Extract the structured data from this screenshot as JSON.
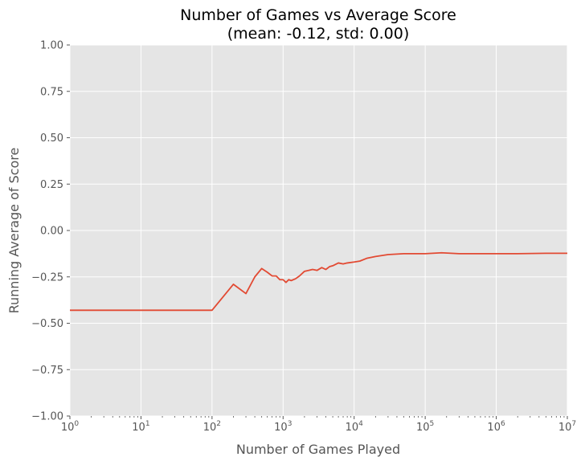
{
  "chart_data": {
    "type": "line",
    "title": "Number of Games vs Average Score",
    "subtitle": "(mean: -0.12, std: 0.00)",
    "xlabel": "Number of Games Played",
    "ylabel": "Running Average of Score",
    "xscale": "log",
    "xlim": [
      1,
      10000000
    ],
    "ylim": [
      -1.0,
      1.0
    ],
    "grid": true,
    "legend": "none",
    "x_tick_labels": [
      {
        "value": 1,
        "base": "10",
        "exp": "0"
      },
      {
        "value": 10,
        "base": "10",
        "exp": "1"
      },
      {
        "value": 100,
        "base": "10",
        "exp": "2"
      },
      {
        "value": 1000,
        "base": "10",
        "exp": "3"
      },
      {
        "value": 10000,
        "base": "10",
        "exp": "4"
      },
      {
        "value": 100000,
        "base": "10",
        "exp": "5"
      },
      {
        "value": 1000000,
        "base": "10",
        "exp": "6"
      },
      {
        "value": 10000000,
        "base": "10",
        "exp": "7"
      }
    ],
    "y_tick_labels": [
      {
        "value": 1.0,
        "label": "1.00"
      },
      {
        "value": 0.75,
        "label": "0.75"
      },
      {
        "value": 0.5,
        "label": "0.50"
      },
      {
        "value": 0.25,
        "label": "0.25"
      },
      {
        "value": 0.0,
        "label": "0.00"
      },
      {
        "value": -0.25,
        "label": "−0.25"
      },
      {
        "value": -0.5,
        "label": "−0.50"
      },
      {
        "value": -0.75,
        "label": "−0.75"
      },
      {
        "value": -1.0,
        "label": "−1.00"
      }
    ],
    "series": [
      {
        "color": "#E24A33",
        "x": [
          1,
          10,
          100,
          200,
          300,
          400,
          500,
          600,
          700,
          800,
          900,
          1000,
          1100,
          1200,
          1300,
          1500,
          1700,
          2000,
          2300,
          2600,
          3000,
          3500,
          4000,
          4500,
          5000,
          6000,
          7000,
          8000,
          10000,
          12000,
          15000,
          20000,
          30000,
          50000,
          100000,
          170000,
          300000,
          500000,
          1000000,
          2000000,
          5000000,
          10000000
        ],
        "y": [
          -0.43,
          -0.43,
          -0.43,
          -0.29,
          -0.34,
          -0.25,
          -0.205,
          -0.225,
          -0.245,
          -0.245,
          -0.265,
          -0.265,
          -0.28,
          -0.265,
          -0.27,
          -0.26,
          -0.245,
          -0.22,
          -0.215,
          -0.21,
          -0.215,
          -0.2,
          -0.21,
          -0.195,
          -0.19,
          -0.175,
          -0.18,
          -0.175,
          -0.17,
          -0.165,
          -0.15,
          -0.14,
          -0.13,
          -0.125,
          -0.125,
          -0.12,
          -0.125,
          -0.125,
          -0.125,
          -0.125,
          -0.123,
          -0.123
        ]
      }
    ]
  }
}
